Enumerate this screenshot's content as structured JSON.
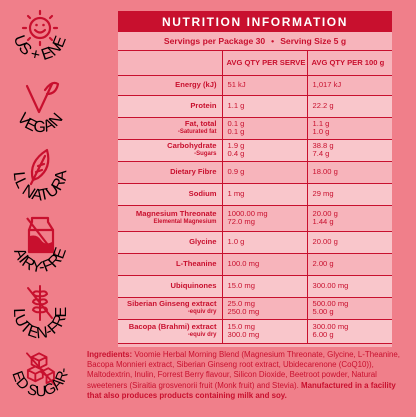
{
  "badges": [
    {
      "label": "FOCUS + ENERGY",
      "icon": "sun-face-icon"
    },
    {
      "label": "VEGAN",
      "icon": "vegan-check-leaf-icon"
    },
    {
      "label": "ALL NATURAL",
      "icon": "leaf-icon"
    },
    {
      "label": "DAIRY-FREE",
      "icon": "milk-carton-crossed-icon"
    },
    {
      "label": "GLUTEN-FREE",
      "icon": "wheat-crossed-icon"
    },
    {
      "label": "REFINED SUGAR-FREE",
      "icon": "sugar-cubes-crossed-icon"
    }
  ],
  "panel": {
    "title": "NUTRITION INFORMATION",
    "servings_per_package": "Servings per Package 30",
    "separator": "•",
    "serving_size": "Serving Size 5 g",
    "col_serve": "AVG QTY PER SERVE",
    "col_100g": "AVG QTY PER 100 g",
    "rows": [
      {
        "label": "Energy (kJ)",
        "serve": [
          "51 kJ"
        ],
        "per100": [
          "1,017 kJ"
        ]
      },
      {
        "label": "Protein",
        "serve": [
          "1.1 g"
        ],
        "per100": [
          "22.2 g"
        ]
      },
      {
        "label": "Fat, total",
        "sub": "-Saturated fat",
        "serve": [
          "0.1 g",
          "0.1 g"
        ],
        "per100": [
          "1.1 g",
          "1.0 g"
        ]
      },
      {
        "label": "Carbohydrate",
        "sub": "-Sugars",
        "serve": [
          "1.9 g",
          "0.4 g"
        ],
        "per100": [
          "38.8 g",
          "7.4 g"
        ]
      },
      {
        "label": "Dietary Fibre",
        "serve": [
          "0.9 g"
        ],
        "per100": [
          "18.00 g"
        ]
      },
      {
        "label": "Sodium",
        "serve": [
          "1 mg"
        ],
        "per100": [
          "29 mg"
        ]
      },
      {
        "label": "Magnesium Threonate",
        "sub": "Elemental Magnesium",
        "serve": [
          "1000.00 mg",
          "72.0 mg"
        ],
        "per100": [
          "20.00 g",
          "1.44 g"
        ]
      },
      {
        "label": "Glycine",
        "serve": [
          "1.0 g"
        ],
        "per100": [
          "20.00 g"
        ]
      },
      {
        "label": "L-Theanine",
        "serve": [
          "100.0 mg"
        ],
        "per100": [
          "2.00 g"
        ]
      },
      {
        "label": "Ubiquinones",
        "serve": [
          "15.0 mg"
        ],
        "per100": [
          "300.00 mg"
        ]
      },
      {
        "label": "Siberian Ginseng extract",
        "sub": "-equiv dry",
        "serve": [
          "25.0 mg",
          "250.0 mg"
        ],
        "per100": [
          "500.00 mg",
          "5.00 g"
        ]
      },
      {
        "label": "Bacopa (Brahmi) extract",
        "sub": "-equiv dry",
        "serve": [
          "15.0 mg",
          "300.0 mg"
        ],
        "per100": [
          "300.00 mg",
          "6.00 g"
        ]
      }
    ]
  },
  "ingredients": {
    "heading": "Ingredients:",
    "text": " Voomie Herbal Morning Blend (Magnesium Threonate, Glycine, L-Theanine, Bacopa Monnieri extract, Siberian Ginseng root extract, Ubidecarenone (CoQ10)), Maltodextrin, Inulin, Forrest Berry flavour, Silicon Dioxide, Beetroot powder, Natural sweeteners (Siraitia grosvenorii fruit (Monk fruit) and Stevia). ",
    "warning": "Manufactured in a facility that also produces products containing milk and soy."
  },
  "colors": {
    "accent": "#c8102e",
    "background": "#f07f8a",
    "panel": "#f7b4bb"
  }
}
